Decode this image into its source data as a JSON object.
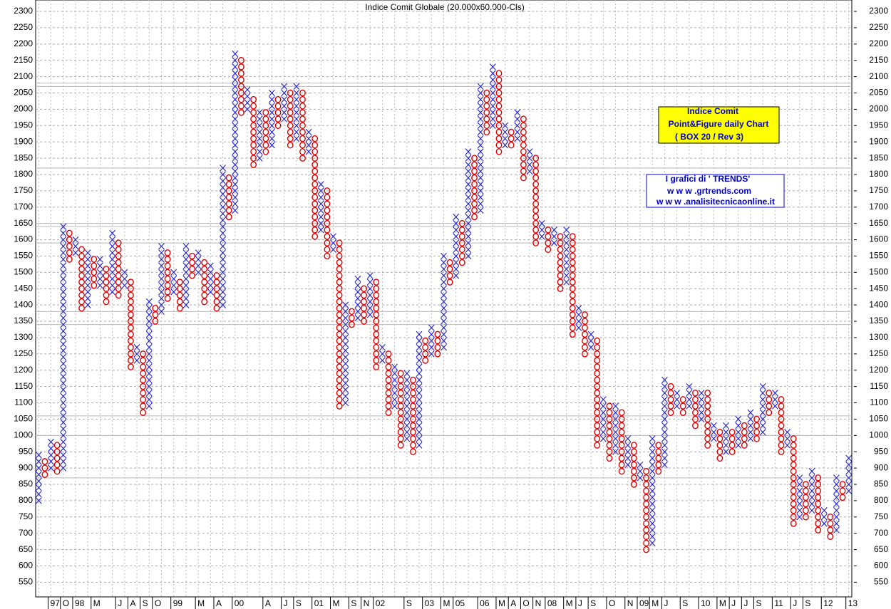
{
  "chart_data": {
    "type": "point-and-figure",
    "title": "Indice Comit Globale (20.000x60.000-Cls)",
    "annotations": [
      "Indice Comit",
      "Point&Figure daily Chart",
      "( BOX 20 / Rev 3)"
    ],
    "credits": [
      "I grafici di ' TRENDS'",
      "w w w .grtrends.com",
      "w w w .analisitecnicaonline.it"
    ],
    "box_size": 20,
    "x_color": "#1f1fd0",
    "o_color": "#e00000",
    "ylim": [
      505,
      2335
    ],
    "yticks": [
      550,
      600,
      650,
      700,
      750,
      800,
      850,
      900,
      950,
      1000,
      1050,
      1100,
      1150,
      1200,
      1250,
      1300,
      1350,
      1400,
      1450,
      1500,
      1550,
      1600,
      1650,
      1700,
      1750,
      1800,
      1850,
      1900,
      1950,
      2000,
      2050,
      2100,
      2150,
      2200,
      2250,
      2300
    ],
    "grid": true,
    "levels": [
      2080,
      2070,
      1820,
      1650,
      1640,
      1590,
      1380,
      1340,
      1060,
      1000,
      870
    ],
    "categories": [
      null,
      null,
      "97",
      null,
      "O",
      null,
      "98",
      null,
      null,
      "M",
      null,
      null,
      null,
      "J",
      null,
      "A",
      null,
      "S",
      null,
      "O",
      null,
      null,
      "99",
      null,
      null,
      null,
      "M",
      null,
      null,
      "A",
      null,
      null,
      "00",
      null,
      null,
      null,
      null,
      "A",
      null,
      null,
      "J",
      null,
      "S",
      null,
      null,
      "01",
      null,
      null,
      "M",
      null,
      null,
      "S",
      null,
      "N",
      null,
      "02",
      null,
      null,
      null,
      null,
      "S",
      null,
      null,
      "03",
      null,
      null,
      "M",
      null,
      "05",
      null,
      null,
      null,
      "06",
      null,
      null,
      "M",
      null,
      "A",
      null,
      "O",
      null,
      "N",
      null,
      "08",
      null,
      null,
      "M",
      null,
      "J",
      null,
      "S",
      null,
      null,
      "O",
      null,
      null,
      "N",
      null,
      "09",
      null,
      "M",
      null,
      "J",
      null,
      null,
      "S",
      null,
      null,
      "10",
      null,
      null,
      "M",
      null,
      "J",
      null,
      "J",
      null,
      "S",
      null,
      null,
      "11",
      null,
      null,
      "J",
      null,
      "S",
      null,
      null,
      "12",
      null,
      null,
      null,
      "13"
    ],
    "columns": [
      {
        "kind": "X",
        "low": 800,
        "high": 940
      },
      {
        "kind": "O",
        "low": 880,
        "high": 920
      },
      {
        "kind": "X",
        "low": 900,
        "high": 980
      },
      {
        "kind": "O",
        "low": 890,
        "high": 980
      },
      {
        "kind": "X",
        "low": 900,
        "high": 1640
      },
      {
        "kind": "O",
        "low": 1540,
        "high": 1620
      },
      {
        "kind": "X",
        "low": 1560,
        "high": 1600
      },
      {
        "kind": "O",
        "low": 1390,
        "high": 1580
      },
      {
        "kind": "X",
        "low": 1400,
        "high": 1560
      },
      {
        "kind": "O",
        "low": 1460,
        "high": 1540
      },
      {
        "kind": "X",
        "low": 1460,
        "high": 1540
      },
      {
        "kind": "O",
        "low": 1410,
        "high": 1520
      },
      {
        "kind": "X",
        "low": 1440,
        "high": 1620
      },
      {
        "kind": "O",
        "low": 1430,
        "high": 1600
      },
      {
        "kind": "X",
        "low": 1460,
        "high": 1500
      },
      {
        "kind": "O",
        "low": 1210,
        "high": 1480
      },
      {
        "kind": "X",
        "low": 1230,
        "high": 1280
      },
      {
        "kind": "O",
        "low": 1070,
        "high": 1260
      },
      {
        "kind": "X",
        "low": 1090,
        "high": 1420
      },
      {
        "kind": "O",
        "low": 1350,
        "high": 1400
      },
      {
        "kind": "X",
        "low": 1380,
        "high": 1580
      },
      {
        "kind": "O",
        "low": 1420,
        "high": 1560
      },
      {
        "kind": "X",
        "low": 1440,
        "high": 1500
      },
      {
        "kind": "O",
        "low": 1390,
        "high": 1480
      },
      {
        "kind": "X",
        "low": 1400,
        "high": 1580
      },
      {
        "kind": "O",
        "low": 1490,
        "high": 1560
      },
      {
        "kind": "X",
        "low": 1500,
        "high": 1560
      },
      {
        "kind": "O",
        "low": 1410,
        "high": 1540
      },
      {
        "kind": "X",
        "low": 1440,
        "high": 1520
      },
      {
        "kind": "O",
        "low": 1390,
        "high": 1500
      },
      {
        "kind": "X",
        "low": 1400,
        "high": 1820
      },
      {
        "kind": "O",
        "low": 1670,
        "high": 1800
      },
      {
        "kind": "X",
        "low": 1690,
        "high": 2180
      },
      {
        "kind": "O",
        "low": 1990,
        "high": 2160
      },
      {
        "kind": "X",
        "low": 2000,
        "high": 2060
      },
      {
        "kind": "O",
        "low": 1830,
        "high": 2040
      },
      {
        "kind": "X",
        "low": 1850,
        "high": 2000
      },
      {
        "kind": "O",
        "low": 1870,
        "high": 2000
      },
      {
        "kind": "X",
        "low": 1890,
        "high": 2060
      },
      {
        "kind": "O",
        "low": 1950,
        "high": 2040
      },
      {
        "kind": "X",
        "low": 1970,
        "high": 2080
      },
      {
        "kind": "O",
        "low": 1890,
        "high": 2060
      },
      {
        "kind": "X",
        "low": 1910,
        "high": 2080
      },
      {
        "kind": "O",
        "low": 1850,
        "high": 2060
      },
      {
        "kind": "X",
        "low": 1870,
        "high": 1940
      },
      {
        "kind": "O",
        "low": 1610,
        "high": 1920
      },
      {
        "kind": "X",
        "low": 1630,
        "high": 1780
      },
      {
        "kind": "O",
        "low": 1550,
        "high": 1760
      },
      {
        "kind": "X",
        "low": 1570,
        "high": 1620
      },
      {
        "kind": "O",
        "low": 1090,
        "high": 1600
      },
      {
        "kind": "X",
        "low": 1100,
        "high": 1400
      },
      {
        "kind": "O",
        "low": 1340,
        "high": 1380
      },
      {
        "kind": "X",
        "low": 1360,
        "high": 1480
      },
      {
        "kind": "O",
        "low": 1350,
        "high": 1460
      },
      {
        "kind": "X",
        "low": 1370,
        "high": 1500
      },
      {
        "kind": "O",
        "low": 1210,
        "high": 1480
      },
      {
        "kind": "X",
        "low": 1230,
        "high": 1280
      },
      {
        "kind": "O",
        "low": 1070,
        "high": 1260
      },
      {
        "kind": "X",
        "low": 1090,
        "high": 1220
      },
      {
        "kind": "O",
        "low": 970,
        "high": 1200
      },
      {
        "kind": "X",
        "low": 990,
        "high": 1200
      },
      {
        "kind": "O",
        "low": 950,
        "high": 1180
      },
      {
        "kind": "X",
        "low": 970,
        "high": 1320
      },
      {
        "kind": "O",
        "low": 1230,
        "high": 1300
      },
      {
        "kind": "X",
        "low": 1250,
        "high": 1340
      },
      {
        "kind": "O",
        "low": 1250,
        "high": 1320
      },
      {
        "kind": "X",
        "low": 1270,
        "high": 1560
      },
      {
        "kind": "O",
        "low": 1470,
        "high": 1540
      },
      {
        "kind": "X",
        "low": 1490,
        "high": 1680
      },
      {
        "kind": "O",
        "low": 1530,
        "high": 1660
      },
      {
        "kind": "X",
        "low": 1550,
        "high": 1880
      },
      {
        "kind": "O",
        "low": 1670,
        "high": 1860
      },
      {
        "kind": "X",
        "low": 1690,
        "high": 2080
      },
      {
        "kind": "O",
        "low": 1930,
        "high": 2060
      },
      {
        "kind": "X",
        "low": 1950,
        "high": 2140
      },
      {
        "kind": "O",
        "low": 1870,
        "high": 2120
      },
      {
        "kind": "X",
        "low": 1890,
        "high": 1960
      },
      {
        "kind": "O",
        "low": 1890,
        "high": 1940
      },
      {
        "kind": "X",
        "low": 1910,
        "high": 2000
      },
      {
        "kind": "O",
        "low": 1790,
        "high": 1980
      },
      {
        "kind": "X",
        "low": 1810,
        "high": 1880
      },
      {
        "kind": "O",
        "low": 1590,
        "high": 1860
      },
      {
        "kind": "X",
        "low": 1610,
        "high": 1660
      },
      {
        "kind": "O",
        "low": 1570,
        "high": 1640
      },
      {
        "kind": "X",
        "low": 1590,
        "high": 1640
      },
      {
        "kind": "O",
        "low": 1450,
        "high": 1620
      },
      {
        "kind": "X",
        "low": 1470,
        "high": 1640
      },
      {
        "kind": "O",
        "low": 1310,
        "high": 1620
      },
      {
        "kind": "X",
        "low": 1330,
        "high": 1400
      },
      {
        "kind": "O",
        "low": 1250,
        "high": 1380
      },
      {
        "kind": "X",
        "low": 1270,
        "high": 1320
      },
      {
        "kind": "O",
        "low": 970,
        "high": 1300
      },
      {
        "kind": "X",
        "low": 990,
        "high": 1120
      },
      {
        "kind": "O",
        "low": 930,
        "high": 1100
      },
      {
        "kind": "X",
        "low": 950,
        "high": 1100
      },
      {
        "kind": "O",
        "low": 890,
        "high": 1080
      },
      {
        "kind": "X",
        "low": 910,
        "high": 1000
      },
      {
        "kind": "O",
        "low": 850,
        "high": 980
      },
      {
        "kind": "X",
        "low": 870,
        "high": 920
      },
      {
        "kind": "O",
        "low": 650,
        "high": 900
      },
      {
        "kind": "X",
        "low": 670,
        "high": 1000
      },
      {
        "kind": "O",
        "low": 890,
        "high": 980
      },
      {
        "kind": "X",
        "low": 910,
        "high": 1180
      },
      {
        "kind": "O",
        "low": 1070,
        "high": 1160
      },
      {
        "kind": "X",
        "low": 1090,
        "high": 1140
      },
      {
        "kind": "O",
        "low": 1070,
        "high": 1120
      },
      {
        "kind": "X",
        "low": 1090,
        "high": 1160
      },
      {
        "kind": "O",
        "low": 1030,
        "high": 1140
      },
      {
        "kind": "X",
        "low": 1050,
        "high": 1140
      },
      {
        "kind": "O",
        "low": 970,
        "high": 1140
      },
      {
        "kind": "X",
        "low": 990,
        "high": 1040
      },
      {
        "kind": "O",
        "low": 930,
        "high": 1020
      },
      {
        "kind": "X",
        "low": 950,
        "high": 1040
      },
      {
        "kind": "O",
        "low": 950,
        "high": 1020
      },
      {
        "kind": "X",
        "low": 970,
        "high": 1060
      },
      {
        "kind": "O",
        "low": 970,
        "high": 1040
      },
      {
        "kind": "X",
        "low": 990,
        "high": 1080
      },
      {
        "kind": "O",
        "low": 990,
        "high": 1060
      },
      {
        "kind": "X",
        "low": 1010,
        "high": 1160
      },
      {
        "kind": "O",
        "low": 1070,
        "high": 1140
      },
      {
        "kind": "X",
        "low": 1090,
        "high": 1140
      },
      {
        "kind": "O",
        "low": 950,
        "high": 1120
      },
      {
        "kind": "X",
        "low": 970,
        "high": 1020
      },
      {
        "kind": "O",
        "low": 730,
        "high": 1000
      },
      {
        "kind": "X",
        "low": 750,
        "high": 880
      },
      {
        "kind": "O",
        "low": 750,
        "high": 860
      },
      {
        "kind": "X",
        "low": 770,
        "high": 900
      },
      {
        "kind": "O",
        "low": 710,
        "high": 880
      },
      {
        "kind": "X",
        "low": 730,
        "high": 780
      },
      {
        "kind": "O",
        "low": 690,
        "high": 760
      },
      {
        "kind": "X",
        "low": 710,
        "high": 880
      },
      {
        "kind": "O",
        "low": 810,
        "high": 860
      },
      {
        "kind": "X",
        "low": 830,
        "high": 940
      }
    ]
  }
}
